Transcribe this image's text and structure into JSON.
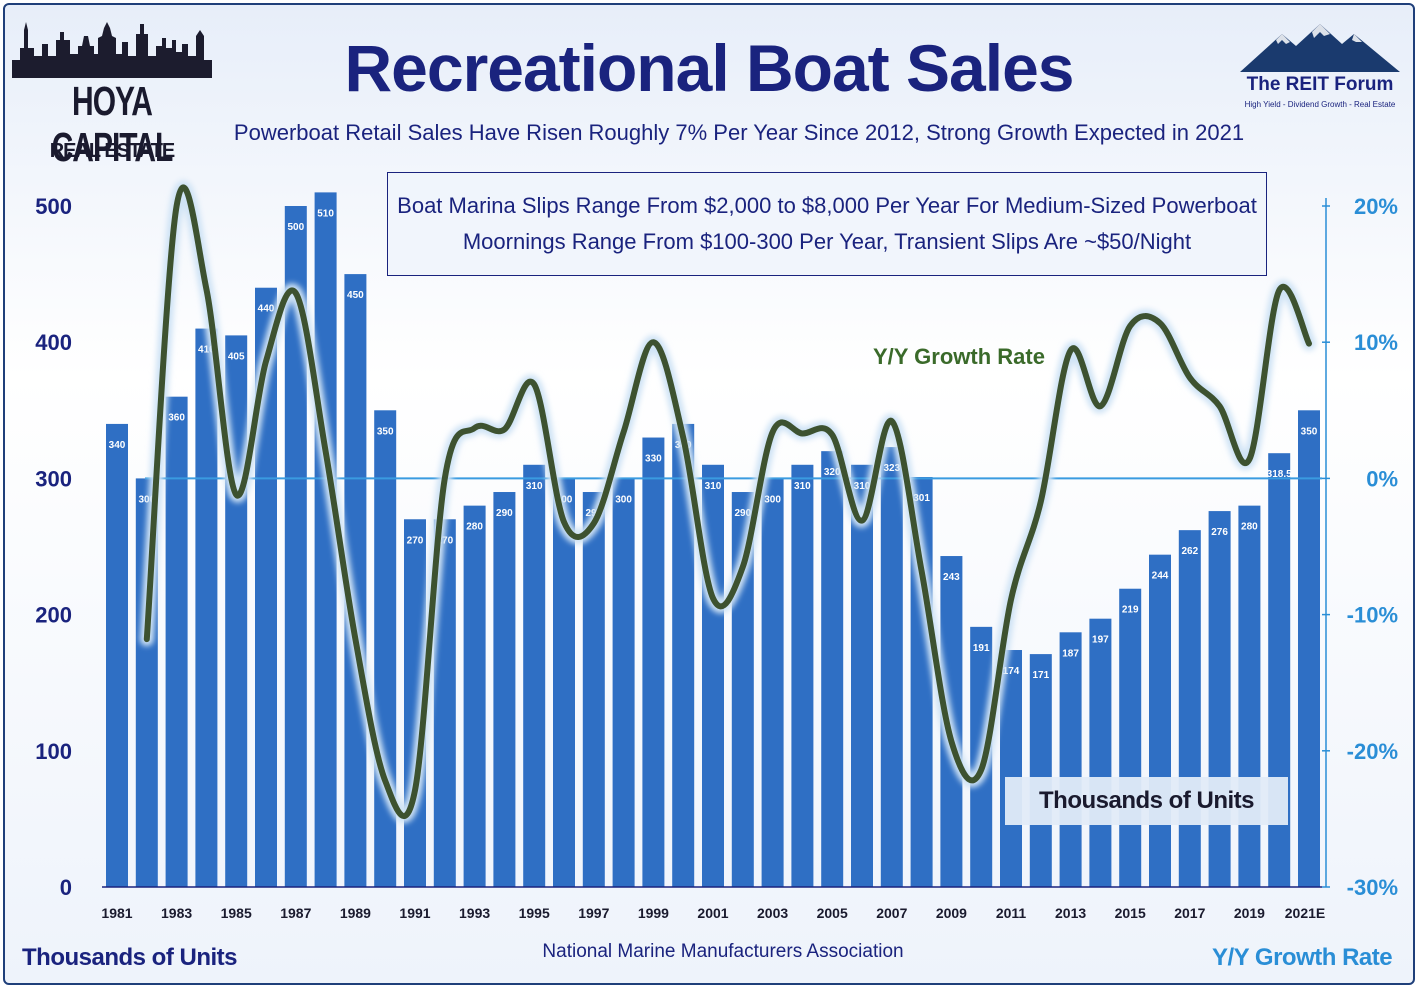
{
  "header": {
    "title": "Recreational Boat Sales",
    "subtitle": "Powerboat Retail Sales Have Risen Roughly 7% Per Year Since 2012, Strong Growth Expected in 2021"
  },
  "logos": {
    "left_line1": "HOYA CAPITAL",
    "left_line2": "REAL ESTATE",
    "right_name": "The REIT Forum",
    "right_tagline": "High Yield - Dividend Growth - Real Estate"
  },
  "note_box": {
    "line1": "Boat Marina Slips Range From $2,000 to $8,000 Per Year For Medium-Sized Powerboat",
    "line2": "Moornings Range From $100-300 Per Year, Transient Slips Are ~$50/Night"
  },
  "labels": {
    "growth_series": "Y/Y Growth Rate",
    "units_box": "Thousands of Units",
    "left_axis_title": "Thousands of Units",
    "right_axis_title": "Y/Y Growth Rate",
    "source": "National Marine Manufacturers Association"
  },
  "colors": {
    "bar": "#2f6fc4",
    "bar_label": "#ffffff",
    "line": "#3d5230",
    "line_glow": "#cfe3f5",
    "zero_line": "#3a9be0",
    "left_axis": "#1a237e",
    "right_axis": "#2a8ed6",
    "title": "#1a237e"
  },
  "chart_data": {
    "type": "bar",
    "categories": [
      "1981",
      "1982",
      "1983",
      "1984",
      "1985",
      "1986",
      "1987",
      "1988",
      "1989",
      "1990",
      "1991",
      "1992",
      "1993",
      "1994",
      "1995",
      "1996",
      "1997",
      "1998",
      "1999",
      "2000",
      "2001",
      "2002",
      "2003",
      "2004",
      "2005",
      "2006",
      "2007",
      "2008",
      "2009",
      "2010",
      "2011",
      "2012",
      "2013",
      "2014",
      "2015",
      "2016",
      "2017",
      "2018",
      "2019",
      "2020",
      "2021E"
    ],
    "x_tick_labels": [
      "1981",
      "1983",
      "1985",
      "1987",
      "1989",
      "1991",
      "1993",
      "1995",
      "1997",
      "1999",
      "2001",
      "2003",
      "2005",
      "2007",
      "2009",
      "2011",
      "2013",
      "2015",
      "2017",
      "2019",
      "2021E"
    ],
    "series": [
      {
        "name": "Thousands of Units",
        "axis": "left",
        "values": [
          340,
          300,
          360,
          410,
          405,
          440,
          500,
          510,
          450,
          350,
          270,
          270,
          280,
          290,
          310,
          300,
          290,
          300,
          330,
          340,
          310,
          290,
          300,
          310,
          320,
          310,
          323,
          301,
          243,
          191,
          174,
          171,
          187,
          197,
          219,
          244,
          262,
          276,
          280,
          318.5,
          350
        ],
        "labels": [
          "340",
          "300",
          "360",
          "410",
          "405",
          "440",
          "500",
          "510",
          "450",
          "350",
          "270",
          "270",
          "280",
          "290",
          "310",
          "300",
          "290",
          "300",
          "330",
          "340",
          "310",
          "290",
          "300",
          "310",
          "320",
          "310",
          "323",
          "301",
          "243",
          "191",
          "174",
          "171",
          "187",
          "197",
          "219",
          "244",
          "262",
          "276",
          "280",
          "318.5",
          "350"
        ]
      },
      {
        "name": "Y/Y Growth Rate",
        "axis": "right",
        "type": "line",
        "values": [
          null,
          -11.8,
          20,
          13.9,
          -1.2,
          8.6,
          13.6,
          2.0,
          -11.8,
          -22.2,
          -22.9,
          0,
          3.7,
          3.6,
          6.9,
          -3.2,
          -3.3,
          3.4,
          10,
          3.0,
          -8.8,
          -6.5,
          3.4,
          3.3,
          3.2,
          -3.1,
          4.2,
          -6.8,
          -19.3,
          -21.4,
          -8.9,
          -1.7,
          9.4,
          5.3,
          11.2,
          11.4,
          7.4,
          5.3,
          1.4,
          13.8,
          9.9
        ]
      }
    ],
    "ylim": [
      0,
      500
    ],
    "yticks": [
      0,
      100,
      200,
      300,
      400,
      500
    ],
    "y2lim": [
      -30,
      20
    ],
    "y2ticks": [
      "-30%",
      "-20%",
      "-10%",
      "0%",
      "10%",
      "20%"
    ],
    "xlabel": "",
    "ylabel": "Thousands of Units",
    "y2label": "Y/Y Growth Rate",
    "grid": false
  }
}
